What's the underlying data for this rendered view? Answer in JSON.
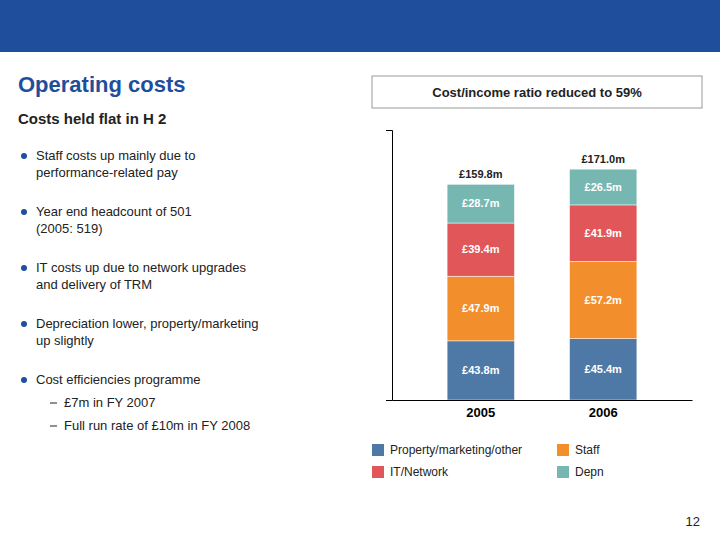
{
  "title": "Operating costs",
  "subtitle": "Costs held flat in H 2",
  "bullets": [
    {
      "text": "Staff costs up mainly due to\nperformance-related pay"
    },
    {
      "text": "Year end headcount of 501\n(2005: 519)"
    },
    {
      "text": "IT costs up due to network upgrades\nand delivery of TRM"
    },
    {
      "text": "Depreciation lower, property/marketing\nup slightly"
    },
    {
      "text": "Cost efficiencies programme",
      "items": [
        "£7m in FY 2007",
        "Full run rate of £10m in FY 2008"
      ]
    }
  ],
  "page_number": "12",
  "chart_data": {
    "type": "bar",
    "title": "Cost/income ratio reduced to 59%",
    "stacked": true,
    "data_labels": true,
    "legend": "bottom",
    "grid": false,
    "tick_labels": "x",
    "categories": [
      "2005",
      "2006"
    ],
    "series": [
      {
        "name": "Property/marketing/other",
        "values": [
          43.8,
          45.4
        ],
        "value_labels": [
          "£43.8m",
          "£45.4m"
        ]
      },
      {
        "name": "Staff",
        "values": [
          47.9,
          57.2
        ],
        "value_labels": [
          "£47.9m",
          "£57.2m"
        ]
      },
      {
        "name": "IT/Network",
        "values": [
          39.4,
          41.9
        ],
        "value_labels": [
          "£39.4m",
          "£41.9m"
        ]
      },
      {
        "name": "Depn",
        "values": [
          28.7,
          26.5
        ],
        "value_labels": [
          "£28.7m",
          "£26.5m"
        ]
      }
    ],
    "totals": {
      "values": [
        159.8,
        171.0
      ],
      "value_labels": [
        "£159.8m",
        "£171.0m"
      ]
    },
    "ylim": [
      0,
      200
    ],
    "yticks": []
  }
}
